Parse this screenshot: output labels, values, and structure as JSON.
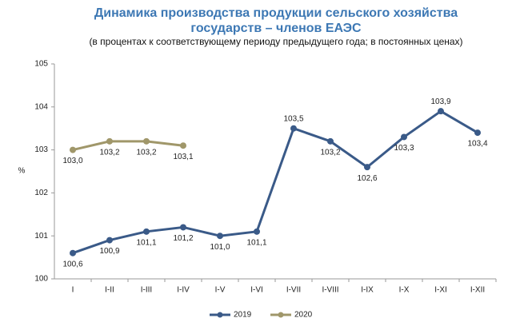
{
  "chart_data": {
    "type": "line",
    "title": "Динамика производства продукции сельского хозяйства",
    "title_line2": "государств – членов ЕАЭС",
    "subtitle": "(в процентах к соответствующему периоду предыдущего года; в постоянных ценах)",
    "y_label": "%",
    "categories": [
      "I",
      "I-II",
      "I-III",
      "I-IV",
      "I-V",
      "I-VI",
      "I-VII",
      "I-VIII",
      "I-IX",
      "I-X",
      "I-XI",
      "I-XII"
    ],
    "series": [
      {
        "name": "2019",
        "color": "#3a5a88",
        "values": [
          100.6,
          100.9,
          101.1,
          101.2,
          101.0,
          101.1,
          103.5,
          103.2,
          102.6,
          103.3,
          103.9,
          103.4
        ],
        "value_labels": [
          "100,6",
          "100,9",
          "101,1",
          "101,2",
          "101,0",
          "101,1",
          "103,5",
          "103,2",
          "102,6",
          "103,3",
          "103,9",
          "103,4"
        ]
      },
      {
        "name": "2020",
        "color": "#a0976a",
        "values": [
          103.0,
          103.2,
          103.2,
          103.1,
          null,
          null,
          null,
          null,
          null,
          null,
          null,
          null
        ],
        "value_labels": [
          "103,0",
          "103,2",
          "103,2",
          "103,1",
          null,
          null,
          null,
          null,
          null,
          null,
          null,
          null
        ]
      }
    ],
    "ylim": [
      100,
      105
    ],
    "yticks": [
      100,
      101,
      102,
      103,
      104,
      105
    ],
    "grid": false,
    "legend": "bottom"
  }
}
